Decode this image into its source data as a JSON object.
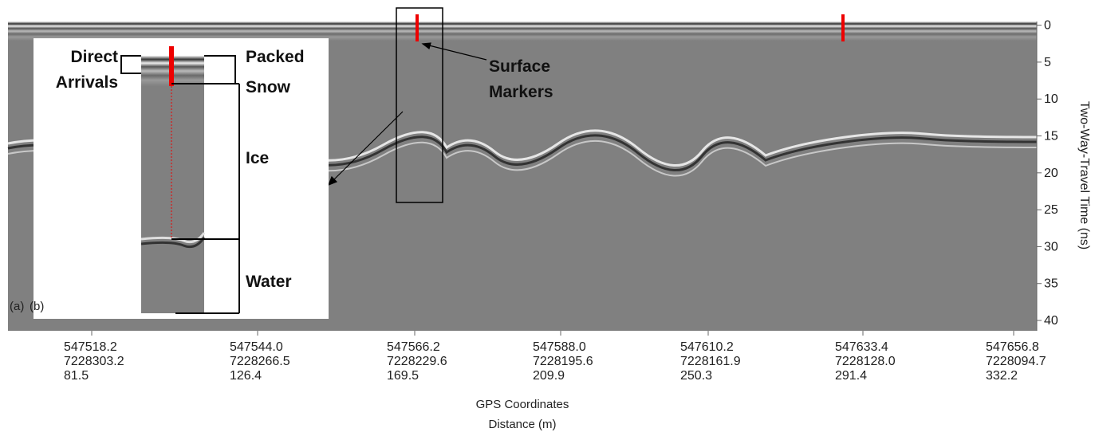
{
  "figure": {
    "panel_labels": [
      "(a)",
      "(b)"
    ],
    "y_axis": {
      "title": "Two-Way-Travel Time (ns)",
      "lim": [
        -0.5,
        41.4
      ],
      "ticks": [
        0,
        5,
        10,
        15,
        20,
        25,
        30,
        35,
        40
      ]
    },
    "x_axis": {
      "title_lines": [
        "GPS Coordinates",
        "Distance (m)"
      ],
      "ticks": [
        {
          "easting": "547518.2",
          "northing": "7228303.2",
          "distance": "81.5"
        },
        {
          "easting": "547544.0",
          "northing": "7228266.5",
          "distance": "126.4"
        },
        {
          "easting": "547566.2",
          "northing": "7228229.6",
          "distance": "169.5"
        },
        {
          "easting": "547588.0",
          "northing": "7228195.6",
          "distance": "209.9"
        },
        {
          "easting": "547610.2",
          "northing": "7228161.9",
          "distance": "250.3"
        },
        {
          "easting": "547633.4",
          "northing": "7228128.0",
          "distance": "291.4"
        },
        {
          "easting": "547656.8",
          "northing": "7228094.7",
          "distance": "332.2"
        }
      ]
    },
    "annotations": {
      "surface_markers": [
        "Surface",
        "Markers"
      ]
    },
    "inset": {
      "direct_arrivals": [
        "Direct",
        "Arrivals"
      ],
      "packed_snow": [
        "Packed",
        "Snow"
      ],
      "ice": "Ice",
      "water": "Water"
    }
  }
}
